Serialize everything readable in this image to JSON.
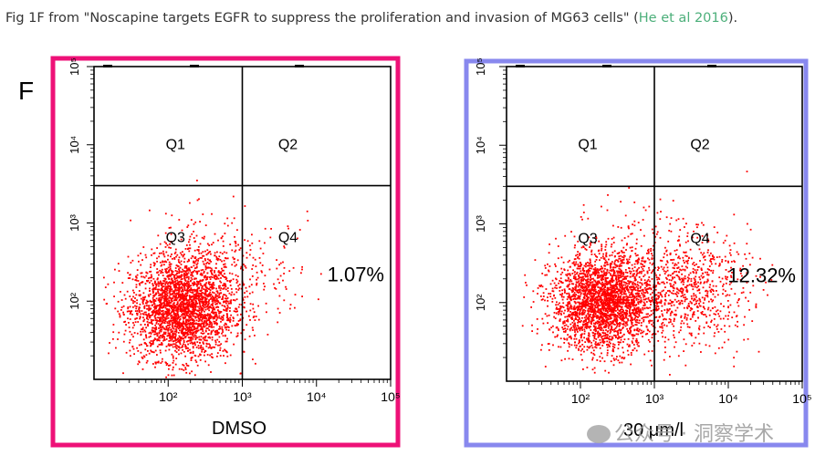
{
  "caption": {
    "prefix": "Fig 1F from \"Noscapine targets EGFR to suppress the proliferation and invasion of MG63 cells\" (",
    "cite": "He et al 2016",
    "suffix": ")."
  },
  "panel_letter": "F",
  "watermark": {
    "text": "公众号 · 洞察学术",
    "icon": "wechat-icon"
  },
  "chart_data": [
    {
      "type": "scatter",
      "xlabel": "DMSO",
      "ylabel": "",
      "x_scale": "log",
      "y_scale": "log",
      "xlim": [
        10,
        100000
      ],
      "ylim": [
        10,
        100000
      ],
      "x_ticks": [
        "10²",
        "10³",
        "10⁴",
        "10⁵"
      ],
      "y_ticks": [
        "10²",
        "10³",
        "10⁴",
        "10⁵"
      ],
      "gate": {
        "x": 1000,
        "y": 3000
      },
      "quadrants": [
        "Q1",
        "Q2",
        "Q3",
        "Q4"
      ],
      "annotation": "1.07%",
      "frame_color": "#ee1177",
      "point_color": "#ff0000",
      "populations": [
        {
          "cx": 150,
          "cy": 80,
          "sx": 0.35,
          "sy": 0.32,
          "n": 2600
        },
        {
          "cx": 350,
          "cy": 250,
          "sx": 0.4,
          "sy": 0.35,
          "n": 350
        },
        {
          "cx": 2500,
          "cy": 300,
          "sx": 0.35,
          "sy": 0.35,
          "n": 60
        }
      ]
    },
    {
      "type": "scatter",
      "xlabel": "30 μm/l",
      "ylabel": "",
      "x_scale": "log",
      "y_scale": "log",
      "xlim": [
        10,
        100000
      ],
      "ylim": [
        10,
        100000
      ],
      "x_ticks": [
        "10²",
        "10³",
        "10⁴",
        "10⁵"
      ],
      "y_ticks": [
        "10²",
        "10³",
        "10⁴",
        "10⁵"
      ],
      "gate": {
        "x": 1000,
        "y": 3000
      },
      "quadrants": [
        "Q1",
        "Q2",
        "Q3",
        "Q4"
      ],
      "annotation": "12.32%",
      "frame_color": "#8888ee",
      "point_color": "#ff0000",
      "populations": [
        {
          "cx": 200,
          "cy": 100,
          "sx": 0.35,
          "sy": 0.3,
          "n": 2600
        },
        {
          "cx": 3000,
          "cy": 150,
          "sx": 0.4,
          "sy": 0.35,
          "n": 700
        },
        {
          "cx": 500,
          "cy": 300,
          "sx": 0.45,
          "sy": 0.4,
          "n": 250
        }
      ]
    }
  ]
}
